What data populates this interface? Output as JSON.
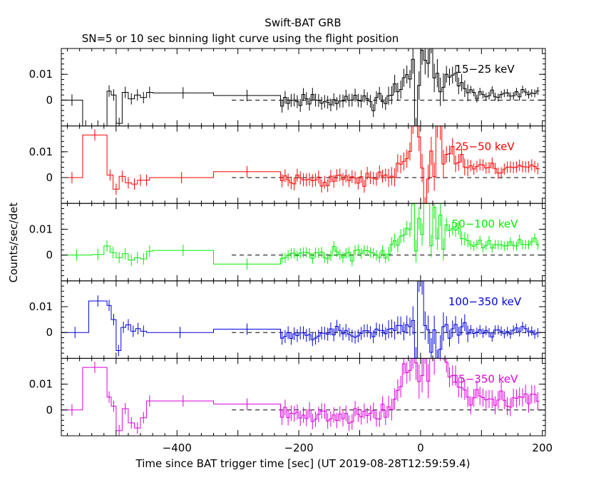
{
  "chart_data": {
    "type": "line",
    "title": "Swift-BAT GRB",
    "subtitle": "SN=5 or 10 sec binning light curve using the flight position",
    "xlabel": "Time since BAT trigger time [sec] (UT 2019-08-28T12:59:59.4)",
    "ylabel": "Counts/sec/det",
    "xlim": [
      -590,
      205
    ],
    "ylim": [
      -0.01,
      0.02
    ],
    "xticks": [
      -400,
      -200,
      0,
      200
    ],
    "xtick_labels": [
      "−400",
      "−200",
      "0",
      "200"
    ],
    "yticks": [
      0,
      0.01
    ],
    "ytick_labels": [
      "0",
      "0.01"
    ],
    "zero_line_range": [
      -310,
      200
    ],
    "panels": [
      {
        "name": "15−25 keV",
        "color": "#000000",
        "coarse": [
          [
            -590,
            -555,
            0.0
          ],
          [
            -555,
            -545,
            -0.01
          ],
          [
            -545,
            -515,
            -0.01
          ],
          [
            -515,
            -508,
            0.0035
          ],
          [
            -508,
            -500,
            0.002
          ],
          [
            -500,
            -490,
            -0.009
          ],
          [
            -490,
            -480,
            0.003
          ],
          [
            -480,
            -470,
            0.0005
          ],
          [
            -470,
            -460,
            0.002
          ],
          [
            -460,
            -450,
            0.001
          ],
          [
            -450,
            -440,
            0.003
          ],
          [
            -440,
            -340,
            0.0028
          ],
          [
            -340,
            -230,
            0.0018
          ]
        ],
        "noisy": [
          -0.01,
          0.02,
          0.0002,
          0.0009,
          0.0025,
          0.0095,
          0.032,
          0.0022,
          0.0015
        ],
        "seed": 11
      },
      {
        "name": "25−50 keV",
        "color": "#ff0000",
        "coarse": [
          [
            -590,
            -555,
            0.0
          ],
          [
            -555,
            -515,
            0.0165
          ],
          [
            -515,
            -505,
            0.001
          ],
          [
            -505,
            -495,
            -0.0045
          ],
          [
            -495,
            -485,
            0.0005
          ],
          [
            -485,
            -475,
            -0.002
          ],
          [
            -475,
            -465,
            -0.0025
          ],
          [
            -465,
            -455,
            -0.001
          ],
          [
            -455,
            -445,
            -0.001
          ],
          [
            -445,
            -340,
            0.0
          ],
          [
            -340,
            -230,
            0.0023
          ]
        ],
        "noisy": [
          -0.01,
          0.02,
          -0.0005,
          0.0018,
          0.0025,
          0.0105,
          0.03,
          0.004,
          0.0022
        ],
        "seed": 23
      },
      {
        "name": "50−100 keV",
        "color": "#00ee00",
        "coarse": [
          [
            -590,
            -540,
            0.0
          ],
          [
            -540,
            -520,
            0.0002
          ],
          [
            -520,
            -510,
            0.0035
          ],
          [
            -510,
            -500,
            0.001
          ],
          [
            -500,
            -490,
            -0.001
          ],
          [
            -490,
            -480,
            0.0005
          ],
          [
            -480,
            -470,
            -0.002
          ],
          [
            -470,
            -460,
            -0.001
          ],
          [
            -460,
            -450,
            -0.0015
          ],
          [
            -450,
            -440,
            0.0015
          ],
          [
            -440,
            -340,
            0.0018
          ],
          [
            -340,
            -230,
            -0.0035
          ]
        ],
        "noisy": [
          -0.01,
          0.02,
          0.0005,
          0.0015,
          0.002,
          0.012,
          0.032,
          0.004,
          0.0018
        ],
        "seed": 37
      },
      {
        "name": "100−350 keV",
        "color": "#0000dd",
        "coarse": [
          [
            -590,
            -545,
            0.0
          ],
          [
            -545,
            -515,
            0.0122
          ],
          [
            -515,
            -508,
            0.0105
          ],
          [
            -508,
            -500,
            0.005
          ],
          [
            -500,
            -492,
            -0.007
          ],
          [
            -492,
            -484,
            0.002
          ],
          [
            -484,
            -476,
            0.003
          ],
          [
            -476,
            -468,
            0.0005
          ],
          [
            -468,
            -460,
            0.0015
          ],
          [
            -460,
            -450,
            0.0005
          ],
          [
            -450,
            -340,
            0.0
          ],
          [
            -340,
            -230,
            0.0013
          ]
        ],
        "noisy": [
          -0.01,
          0.02,
          0.0,
          0.0008,
          0.0025,
          0.002,
          0.03,
          0.0005,
          0.0018
        ],
        "seed": 53
      },
      {
        "name": "15−350 keV",
        "color": "#dd00dd",
        "coarse": [
          [
            -590,
            -555,
            0.0
          ],
          [
            -555,
            -515,
            0.0165
          ],
          [
            -515,
            -508,
            0.005
          ],
          [
            -508,
            -500,
            0.0015
          ],
          [
            -500,
            -490,
            -0.008
          ],
          [
            -490,
            -480,
            0.0005
          ],
          [
            -480,
            -470,
            -0.005
          ],
          [
            -470,
            -460,
            -0.007
          ],
          [
            -460,
            -450,
            -0.003
          ],
          [
            -450,
            -440,
            0.0035
          ],
          [
            -440,
            -340,
            0.0035
          ],
          [
            -340,
            -230,
            0.0023
          ]
        ],
        "noisy": [
          -0.01,
          0.02,
          -0.002,
          0.005,
          0.003,
          0.019,
          0.03,
          0.004,
          0.0035
        ],
        "seed": 71
      }
    ]
  }
}
